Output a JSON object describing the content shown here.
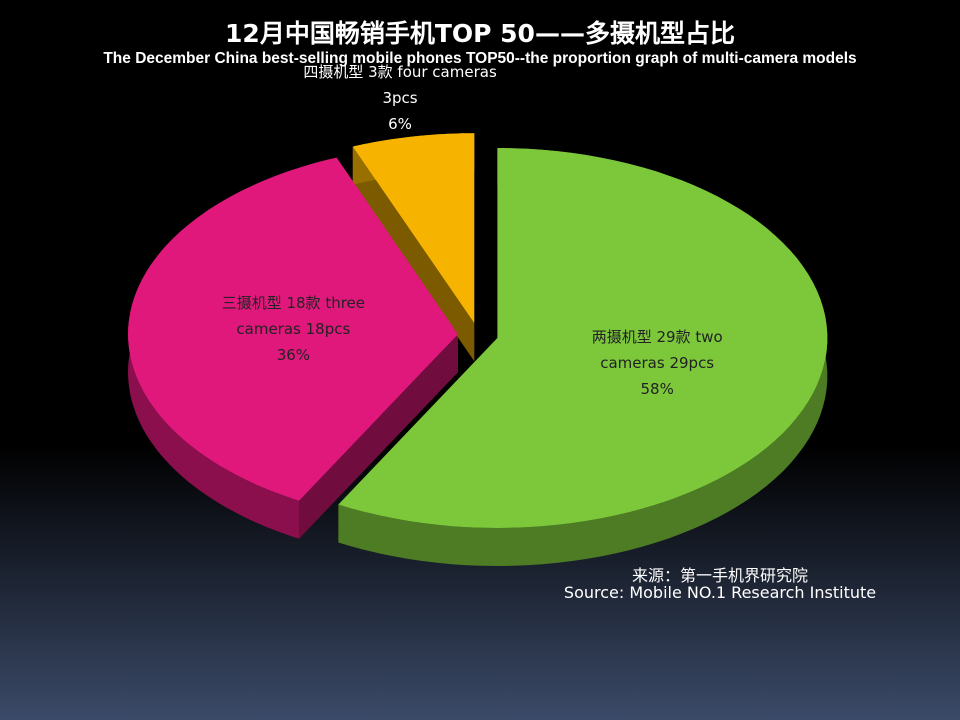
{
  "chart_data": {
    "type": "pie",
    "title": "12月中国畅销手机TOP 50——多摄机型占比",
    "subtitle": "The December China best-selling mobile phones TOP50--the proportion graph of multi-camera models",
    "categories": [
      "两摄机型 29款 two cameras 29pcs",
      "三摄机型 18款 three cameras 18pcs",
      "四摄机型 3款 four cameras 3pcs"
    ],
    "values": [
      58,
      36,
      6
    ],
    "value_labels": [
      "58%",
      "36%",
      "6%"
    ],
    "colors": [
      "#7cc83a",
      "#e0187c",
      "#f6b400"
    ],
    "source": [
      "来源：第一手机界研究院",
      "Source: Mobile NO.1 Research Institute"
    ]
  }
}
